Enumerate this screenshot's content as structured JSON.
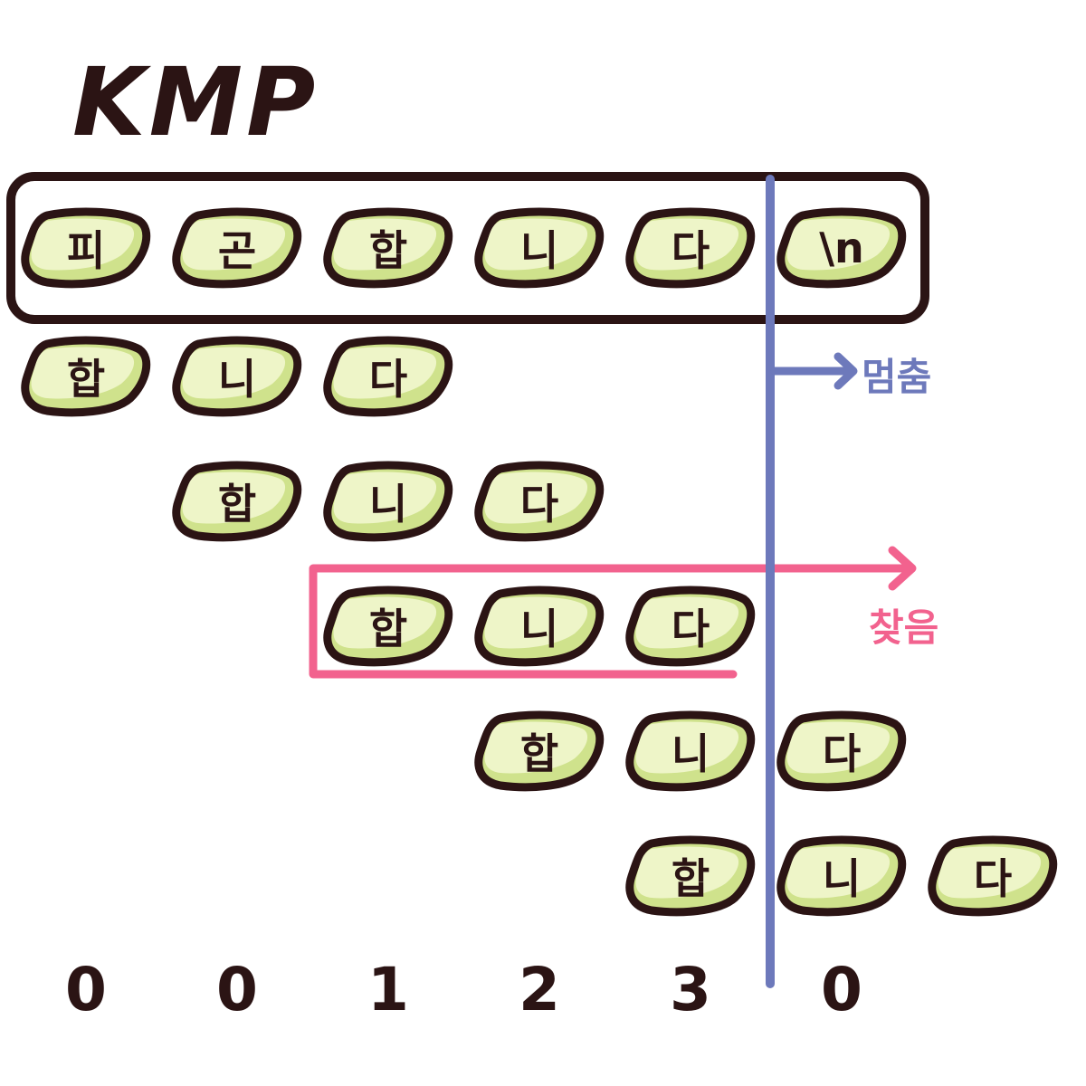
{
  "title": "KMP",
  "colors": {
    "ink": "#2b1414",
    "bean_fill": "#eef5c8",
    "bean_shade": "#cfe28c",
    "stop_line": "#6d79bb",
    "found_box": "#f2628e"
  },
  "text_row": [
    "피",
    "곤",
    "합",
    "니",
    "다",
    "\\n"
  ],
  "pattern": [
    "합",
    "니",
    "다"
  ],
  "pattern_rows": [
    {
      "offset": 0
    },
    {
      "offset": 1
    },
    {
      "offset": 2
    },
    {
      "offset": 3
    },
    {
      "offset": 4
    }
  ],
  "stop_label": "멈춤",
  "found_label": "찾음",
  "index_values": [
    "0",
    "0",
    "1",
    "2",
    "3",
    "0"
  ]
}
